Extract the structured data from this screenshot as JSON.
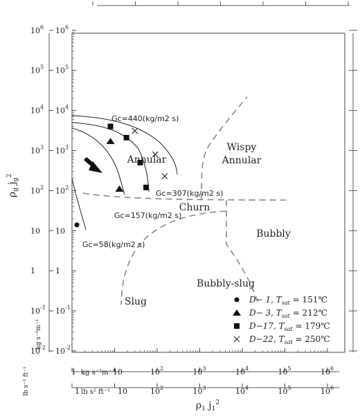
{
  "chart_data": {
    "type": "scatter",
    "axes": {
      "x_label": "ρ₁ j₁²",
      "y_label": "ρg jg²",
      "x_range": [
        1,
        1000000
      ],
      "y_range": [
        0.01,
        1000000
      ],
      "scale": "log",
      "units_y": "kg s⁻²m⁻¹",
      "units_y_ft": "lb s⁻² ft⁻¹",
      "units_x": "kg s⁻²m⁻¹",
      "units_x_ft": "lb s² ft⁻¹",
      "y_tick_labels": [
        {
          "base": "10",
          "exp": "-2"
        },
        {
          "base": "10",
          "exp": "-1"
        },
        {
          "base": "1",
          "exp": ""
        },
        {
          "base": "10",
          "exp": ""
        },
        {
          "base": "10",
          "exp": "2"
        },
        {
          "base": "10",
          "exp": "3"
        },
        {
          "base": "10",
          "exp": "4"
        },
        {
          "base": "10",
          "exp": "5"
        },
        {
          "base": "10",
          "exp": "6"
        }
      ],
      "x_tick_labels": [
        {
          "base": "10",
          "exp": ""
        },
        {
          "base": "10",
          "exp": "2"
        },
        {
          "base": "10",
          "exp": "3"
        },
        {
          "base": "10",
          "exp": "4"
        },
        {
          "base": "10",
          "exp": "5"
        },
        {
          "base": "10",
          "exp": "6"
        }
      ]
    },
    "regions": {
      "wispy_annular": "Wispy\nAnnular",
      "annular": "Annular",
      "churn": "Churn",
      "bubbly": "Bubbly",
      "bubbly_slug": "Bubbly-slug",
      "slug": "Slug"
    },
    "curve_labels": {
      "gc440": "Gc=440(kg/m2 s)",
      "gc307": "Gc=307(kg/m2 s)",
      "gc157": "Gc=157(kg/m2 s)",
      "gc58": "Gc=58(kg/m2 s)"
    },
    "series": [
      {
        "name": "D− 1, T_sat = 151℃",
        "marker": "circle",
        "points": [
          [
            1.3,
            14
          ]
        ]
      },
      {
        "name": "D− 3, T_sat = 212℃",
        "marker": "triangle",
        "points": [
          [
            8,
            1700
          ],
          [
            13,
            110
          ]
        ]
      },
      {
        "name": "D−17, T_sat = 179℃",
        "marker": "square",
        "points": [
          [
            8,
            4000
          ],
          [
            19,
            2100
          ],
          [
            40,
            500
          ],
          [
            55,
            120
          ]
        ]
      },
      {
        "name": "D−22, T_sat = 250℃",
        "marker": "x",
        "points": [
          [
            30,
            3100
          ],
          [
            90,
            800
          ],
          [
            150,
            230
          ]
        ]
      }
    ],
    "legend": {
      "position": "bottom-right",
      "entries": [
        {
          "code": "D− 1",
          "tsat": "151℃"
        },
        {
          "code": "D− 3",
          "tsat": "212℃"
        },
        {
          "code": "D−17",
          "tsat": "179℃"
        },
        {
          "code": "D−22",
          "tsat": "250℃"
        }
      ]
    }
  }
}
